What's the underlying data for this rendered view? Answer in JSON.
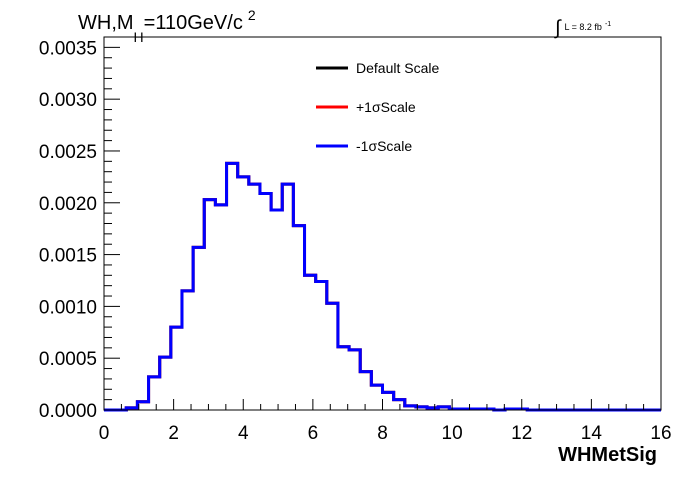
{
  "chart_data": {
    "type": "line",
    "step_histogram": true,
    "title_parts": {
      "prefix": "WH,M",
      "subscript": "H",
      "middle": "=110GeV/c",
      "superscript": "2"
    },
    "luminosity": {
      "symbol": "∫",
      "text": "L = 8.2 fb",
      "superscript": "-1"
    },
    "xlabel": "WHMetSig",
    "ylabel": "",
    "xlim": [
      0,
      16
    ],
    "ylim": [
      0,
      0.0036
    ],
    "x_ticks": [
      0,
      2,
      4,
      6,
      8,
      10,
      12,
      14,
      16
    ],
    "x_tick_labels": [
      "0",
      "2",
      "4",
      "6",
      "8",
      "10",
      "12",
      "14",
      "16"
    ],
    "y_ticks": [
      0,
      0.0005,
      0.001,
      0.0015,
      0.002,
      0.0025,
      0.003,
      0.0035
    ],
    "y_tick_labels": [
      "0.0000",
      "0.0005",
      "0.0010",
      "0.0015",
      "0.0020",
      "0.0025",
      "0.0030",
      "0.0035"
    ],
    "grid": false,
    "legend_placement": "top-center",
    "bin_edges": [
      0,
      0.32,
      0.64,
      0.96,
      1.28,
      1.6,
      1.92,
      2.24,
      2.56,
      2.88,
      3.2,
      3.52,
      3.84,
      4.16,
      4.48,
      4.8,
      5.12,
      5.44,
      5.76,
      6.08,
      6.4,
      6.72,
      7.04,
      7.36,
      7.68,
      8.0,
      8.32,
      8.64,
      8.96,
      9.28,
      9.6,
      9.92,
      10.24,
      10.56,
      10.88,
      11.2,
      11.52,
      11.84,
      12.16,
      12.48,
      12.8,
      13.12,
      13.44,
      13.76,
      14.08,
      14.4,
      14.72,
      15.04,
      15.36,
      15.68,
      16.0
    ],
    "series": [
      {
        "name": "Default Scale",
        "color": "#000000",
        "values": [
          0,
          0,
          2e-05,
          8e-05,
          0.00032,
          0.00051,
          0.0008,
          0.00115,
          0.00157,
          0.00203,
          0.00198,
          0.00238,
          0.00225,
          0.00218,
          0.00209,
          0.00193,
          0.00218,
          0.00178,
          0.0013,
          0.00124,
          0.00103,
          0.00061,
          0.00058,
          0.00037,
          0.00024,
          0.00017,
          0.0001,
          4e-05,
          3e-05,
          2e-05,
          3e-05,
          1e-05,
          1e-05,
          1e-05,
          1e-05,
          0,
          1e-05,
          1e-05,
          0,
          0,
          0,
          0,
          0,
          0,
          0,
          0,
          0,
          0,
          0,
          0
        ]
      },
      {
        "name": "+1σScale",
        "color": "#ff0000",
        "values": [
          0,
          0,
          2e-05,
          8e-05,
          0.00032,
          0.00051,
          0.0008,
          0.00115,
          0.00157,
          0.00203,
          0.00198,
          0.00238,
          0.00225,
          0.00218,
          0.00209,
          0.00193,
          0.00218,
          0.00178,
          0.0013,
          0.00124,
          0.00103,
          0.00061,
          0.00058,
          0.00037,
          0.00024,
          0.00017,
          0.0001,
          4e-05,
          3e-05,
          2e-05,
          3e-05,
          1e-05,
          1e-05,
          1e-05,
          1e-05,
          0,
          1e-05,
          1e-05,
          0,
          0,
          0,
          0,
          0,
          0,
          0,
          0,
          0,
          0,
          0,
          0
        ]
      },
      {
        "name": "-1σScale",
        "color": "#0000ff",
        "values": [
          0,
          0,
          2e-05,
          8e-05,
          0.00032,
          0.00051,
          0.0008,
          0.00115,
          0.00157,
          0.00203,
          0.00198,
          0.00238,
          0.00225,
          0.00218,
          0.00209,
          0.00193,
          0.00218,
          0.00178,
          0.0013,
          0.00124,
          0.00103,
          0.00061,
          0.00058,
          0.00037,
          0.00024,
          0.00017,
          0.0001,
          4e-05,
          3e-05,
          2e-05,
          3e-05,
          1e-05,
          1e-05,
          1e-05,
          1e-05,
          0,
          1e-05,
          1e-05,
          0,
          0,
          0,
          0,
          0,
          0,
          0,
          0,
          0,
          0,
          0,
          0
        ]
      }
    ]
  }
}
